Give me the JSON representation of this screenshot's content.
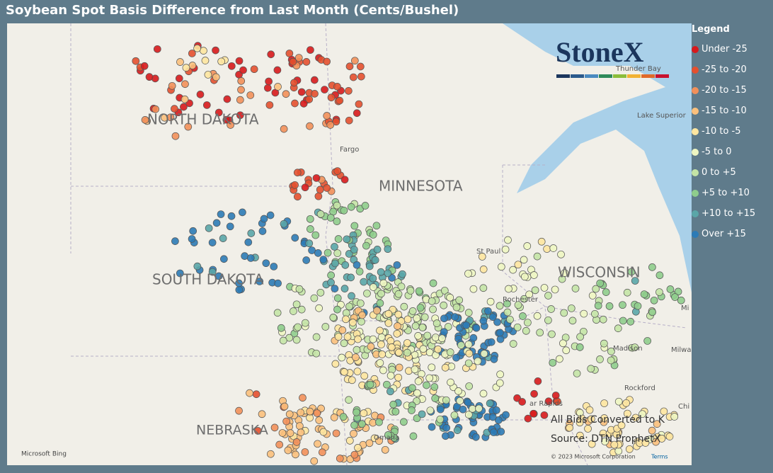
{
  "header": {
    "title": "Soybean Spot Basis Difference from Last Month (Cents/Bushel)"
  },
  "legend": {
    "title": "Legend",
    "items": [
      {
        "label": "Under -25",
        "color": "#d7191c"
      },
      {
        "label": "-25 to -20",
        "color": "#e4502f"
      },
      {
        "label": "-20 to -15",
        "color": "#f2905a"
      },
      {
        "label": "-15 to -10",
        "color": "#fbc07c"
      },
      {
        "label": "-10 to -5",
        "color": "#fee6a0"
      },
      {
        "label": "-5 to 0",
        "color": "#eef6c2"
      },
      {
        "label": "0 to +5",
        "color": "#c4e4a6"
      },
      {
        "label": "+5 to +10",
        "color": "#8fcd8c"
      },
      {
        "label": "+10 to +15",
        "color": "#5aa6a8"
      },
      {
        "label": "Over +15",
        "color": "#2c7bb6"
      }
    ]
  },
  "map": {
    "labels": [
      "NORTH DAKOTA",
      "MINNESOTA",
      "SOUTH DAKOTA",
      "WISCONSIN",
      "NEBRASKA",
      "Fargo",
      "St Paul",
      "Lake Superior",
      "Thunder Bay",
      "Rochester",
      "Madison",
      "Milwa",
      "Rockford",
      "ar Rapids",
      "Omaha",
      "Mi",
      "Chi"
    ],
    "logo": "StoneX",
    "notes": [
      "All Bids Converted to K",
      "Source: DTN ProphetX"
    ],
    "attribution": {
      "provider": "Microsoft Bing",
      "copyright": "© 2023 Microsoft Corporation",
      "terms": "Terms"
    }
  }
}
